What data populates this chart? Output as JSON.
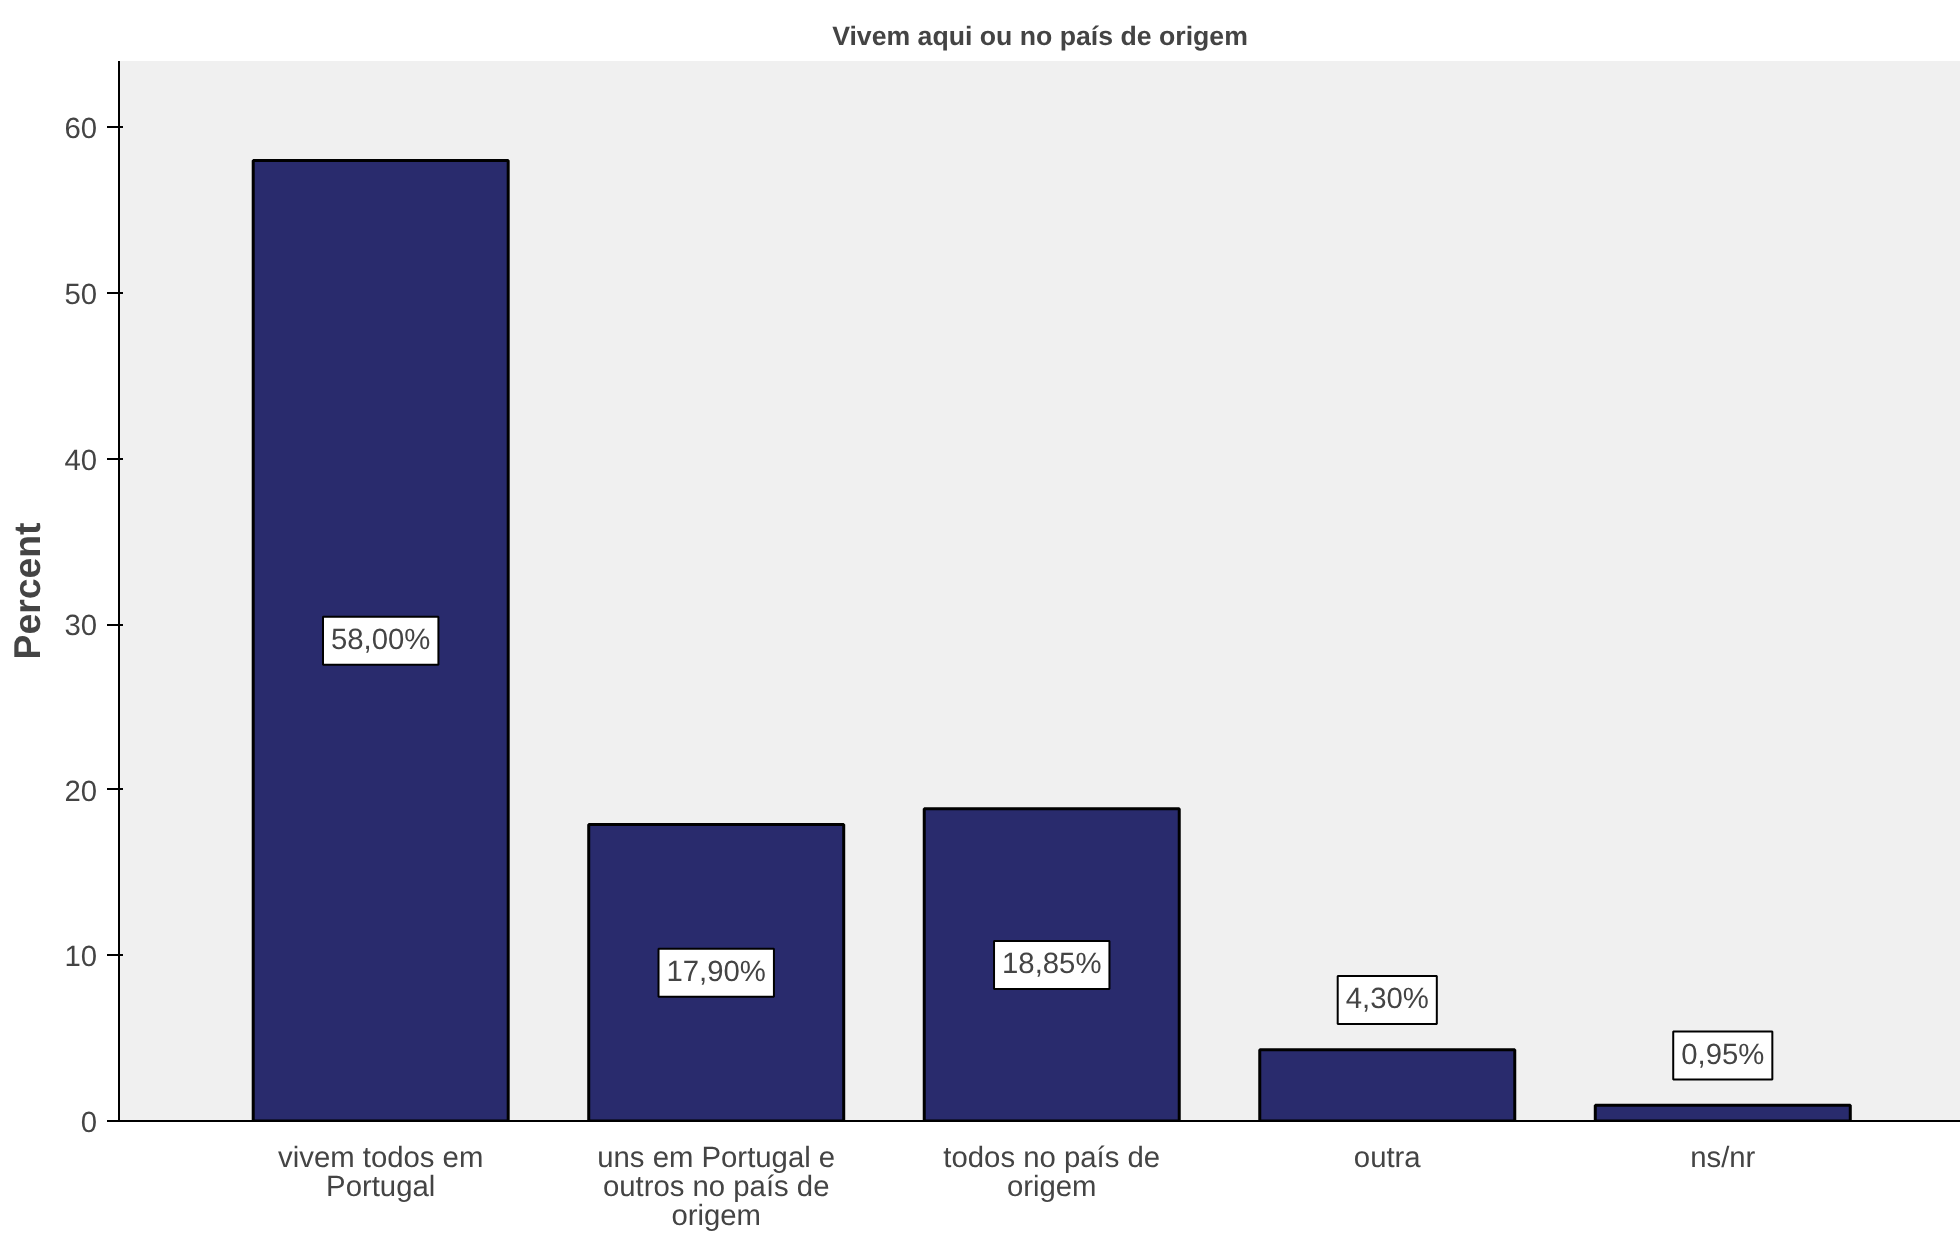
{
  "chart_data": {
    "type": "bar",
    "title": "Vivem aqui ou no país de origem",
    "ylabel": "Percent",
    "categories": [
      "vivem todos em\nPortugal",
      "uns em Portugal e\noutros no país de\norigem",
      "todos no país de\norigem",
      "outra",
      "ns/nr"
    ],
    "values": [
      58.0,
      17.9,
      18.85,
      4.3,
      0.95
    ],
    "value_labels": [
      "58,00%",
      "17,90%",
      "18,85%",
      "4,30%",
      "0,95%"
    ],
    "color": "#292b6d",
    "ylim": [
      0,
      64
    ],
    "yticks": [
      0,
      10,
      20,
      30,
      40,
      50,
      60
    ],
    "grid": false
  }
}
